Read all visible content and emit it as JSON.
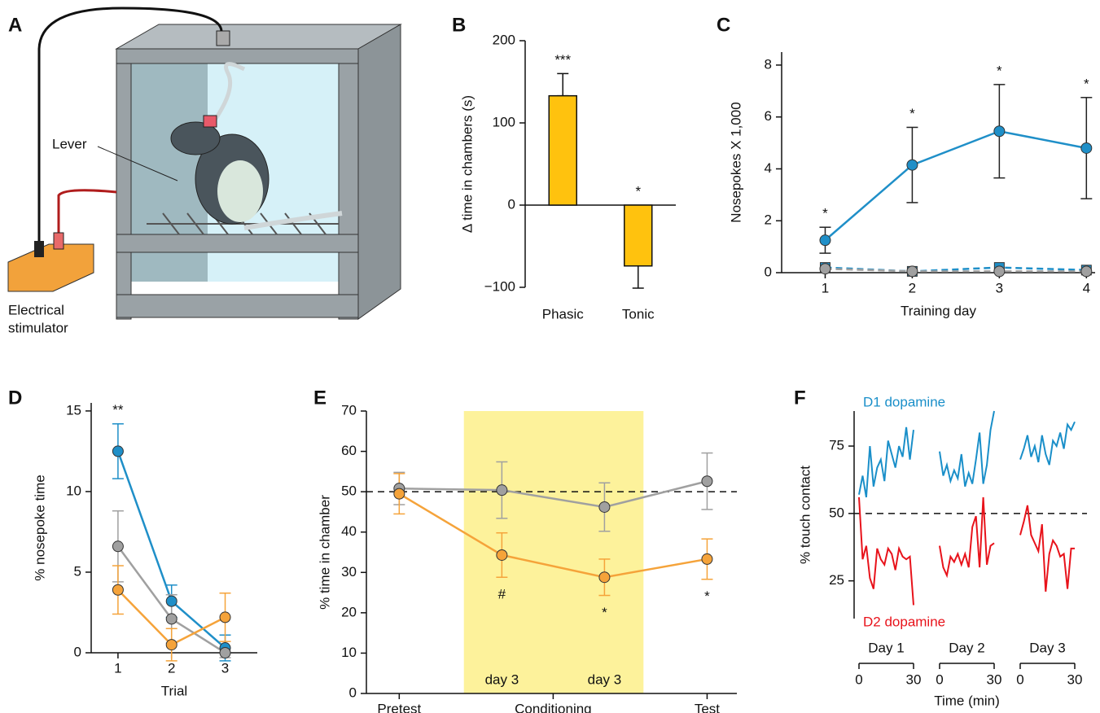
{
  "illustration": {
    "panel": "A",
    "lever": "Lever",
    "stimulator": [
      "Electrical",
      "stimulator"
    ]
  },
  "chart_data": [
    {
      "panel": "B",
      "type": "bar",
      "ylabel": "Δ time in chambers (s)",
      "categories": [
        "Phasic",
        "Tonic"
      ],
      "values": [
        133,
        -74
      ],
      "errors": [
        27,
        27
      ],
      "annotations": [
        "***",
        "*"
      ],
      "color": "#ffc20e",
      "ylim": [
        -100,
        200
      ],
      "yticks": [
        {
          "value": -100,
          "label": "−100"
        },
        0,
        100,
        200
      ]
    },
    {
      "panel": "C",
      "type": "line",
      "xlabel": "Training day",
      "ylabel": "Nosepokes X 1,000",
      "x": [
        1,
        2,
        3,
        4
      ],
      "xlim": [
        0.5,
        4.1
      ],
      "xticks": [
        1,
        2,
        3,
        4
      ],
      "ylim": [
        0,
        8.5
      ],
      "yticks": [
        0,
        2,
        4,
        6,
        8
      ],
      "annotations": [
        "*",
        "*",
        "*",
        "*"
      ],
      "series": [
        {
          "color": "#1f8fc8",
          "marker": "circle",
          "values": [
            1.25,
            4.15,
            5.45,
            4.8
          ],
          "errors": [
            0.5,
            1.45,
            1.8,
            1.95
          ],
          "error_color": "#222222"
        },
        {
          "color": "#1f8fc8",
          "marker": "square",
          "dashed": true,
          "values": [
            0.2,
            0.05,
            0.2,
            0.1
          ]
        },
        {
          "color": "#a0a0a0",
          "marker": "circle",
          "dashed": true,
          "values": [
            0.15,
            0.05,
            0.05,
            0.05
          ]
        }
      ]
    },
    {
      "panel": "D",
      "type": "line",
      "xlabel": "Trial",
      "ylabel": "% nosepoke time",
      "x": [
        1,
        2,
        3
      ],
      "xlim": [
        0.5,
        3.6
      ],
      "xticks": [
        1,
        2,
        3
      ],
      "ylim": [
        0,
        15.5
      ],
      "yticks": [
        0,
        5,
        10,
        15
      ],
      "annotations": [
        "**",
        null,
        null
      ],
      "series": [
        {
          "color": "#1f8fc8",
          "marker": "circle",
          "values": [
            12.5,
            3.2,
            0.3
          ],
          "errors": [
            1.7,
            1.0,
            0.8
          ]
        },
        {
          "color": "#a0a0a0",
          "marker": "circle",
          "values": [
            6.6,
            2.1,
            0
          ],
          "errors": [
            2.2,
            1.5,
            0.3
          ]
        },
        {
          "color": "#f5a33a",
          "marker": "circle",
          "values": [
            3.9,
            0.5,
            2.2
          ],
          "errors": [
            1.5,
            1.0,
            1.5
          ]
        }
      ]
    },
    {
      "panel": "E",
      "type": "line",
      "ylabel": "% time in chamber",
      "x": [
        0,
        1,
        2,
        3
      ],
      "xlim": [
        -0.32,
        3.29
      ],
      "xticks": [
        {
          "value": 0,
          "label": "Pretest"
        },
        {
          "value": 1.5,
          "label": "Conditioning"
        },
        {
          "value": 3,
          "label": "Test"
        }
      ],
      "ylim": [
        0,
        70
      ],
      "yticks": [
        0,
        10,
        20,
        30,
        40,
        50,
        60,
        70
      ],
      "hline": 50,
      "highlight": {
        "x": [
          0.63,
          2.38
        ],
        "color": "#fdf29b"
      },
      "phase_labels": [
        null,
        "day 3",
        "day 3",
        null
      ],
      "annotations": [
        null,
        "#",
        "*",
        "*"
      ],
      "annotation_position": "below",
      "series": [
        {
          "color": "#a0a0a0",
          "marker": "circle",
          "values": [
            50.8,
            50.4,
            46.2,
            52.6
          ],
          "errors": [
            4,
            7,
            6,
            7
          ]
        },
        {
          "color": "#f5a33a",
          "marker": "circle",
          "values": [
            49.5,
            34.3,
            28.8,
            33.3
          ],
          "errors": [
            5,
            5.5,
            4.5,
            5
          ]
        }
      ]
    },
    {
      "panel": "F",
      "type": "line",
      "xlabel": "Time (min)",
      "ylabel": "% touch contact",
      "groups": [
        "Day 1",
        "Day 2",
        "Day 3"
      ],
      "x": [
        0,
        2,
        4,
        6,
        8,
        10,
        12,
        14,
        16,
        18,
        20,
        22,
        24,
        26,
        28,
        30
      ],
      "xlim": [
        0,
        30
      ],
      "xticks": [
        0,
        30
      ],
      "ylim": [
        11,
        88
      ],
      "yticks": [
        25,
        50,
        75
      ],
      "hline": 50,
      "series": [
        {
          "name": "D1 dopamine",
          "color": "#1a8fc9",
          "values": [
            [
              57,
              64,
              56,
              75,
              60,
              67,
              70,
              62,
              77,
              72,
              67,
              75,
              71,
              82,
              70,
              81
            ],
            [
              73,
              64,
              68,
              62,
              66,
              63,
              72,
              60,
              65,
              61,
              70,
              80,
              61,
              68,
              81,
              88
            ],
            [
              70,
              74,
              79,
              71,
              75,
              69,
              79,
              72,
              68,
              77,
              75,
              80,
              74,
              83,
              81,
              84
            ]
          ]
        },
        {
          "name": "D2 dopamine",
          "color": "#e8131b",
          "values": [
            [
              56,
              33,
              38,
              26,
              22,
              37,
              33,
              31,
              37,
              35,
              29,
              37,
              34,
              33,
              34,
              16
            ],
            [
              38,
              30,
              27,
              34,
              32,
              35,
              31,
              35,
              30,
              45,
              49,
              30,
              56,
              31,
              38,
              39
            ],
            [
              42,
              47,
              53,
              42,
              39,
              36,
              46,
              21,
              35,
              40,
              38,
              34,
              35,
              22,
              37,
              37
            ]
          ]
        }
      ]
    }
  ]
}
